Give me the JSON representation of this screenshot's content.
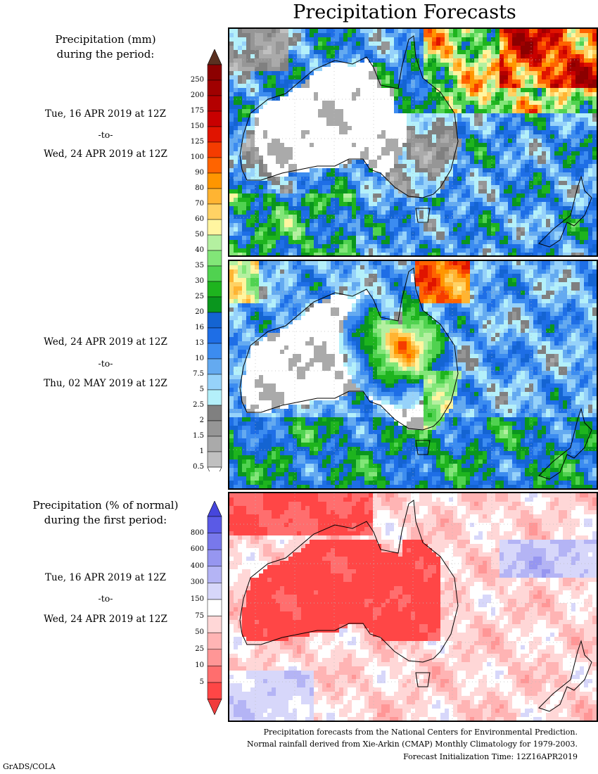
{
  "title": "Precipitation Forecasts",
  "panel1": {
    "label_line1": "Precipitation (mm)",
    "label_line2": "during the period:",
    "start": "Tue, 16 APR 2019 at 12Z",
    "to": "-to-",
    "end": "Wed, 24 APR 2019 at 12Z"
  },
  "panel2": {
    "start": "Wed, 24 APR 2019 at 12Z",
    "to": "-to-",
    "end": "Thu, 02 MAY 2019 at 12Z"
  },
  "panel3": {
    "label_line1": "Precipitation (% of normal)",
    "label_line2": "during the first period:",
    "start": "Tue, 16 APR 2019 at 12Z",
    "to": "-to-",
    "end": "Wed, 24 APR 2019 at 12Z"
  },
  "mm_scale": {
    "ticks": [
      "250",
      "200",
      "175",
      "150",
      "125",
      "100",
      "90",
      "80",
      "70",
      "60",
      "50",
      "40",
      "35",
      "30",
      "25",
      "20",
      "16",
      "13",
      "10",
      "7.5",
      "5",
      "2.5",
      "2",
      "1.5",
      "1",
      "0.5"
    ],
    "colors": [
      "#8c0000",
      "#a00000",
      "#b40000",
      "#c80000",
      "#e01400",
      "#f53c00",
      "#ff6400",
      "#ff9600",
      "#ffb432",
      "#ffd264",
      "#fff5a0",
      "#b4f0a0",
      "#82e678",
      "#50d250",
      "#1eb41e",
      "#0a961e",
      "#1464d2",
      "#1e6ee6",
      "#3c8cf0",
      "#64aaf0",
      "#96d2fa",
      "#b4f0fa",
      "#808080",
      "#969696",
      "#aaaaaa",
      "#c0c0c0"
    ],
    "top_cap": "#5a3020",
    "bottom_cap": "#ffffff"
  },
  "pct_scale": {
    "ticks": [
      "800",
      "600",
      "400",
      "300",
      "150",
      "75",
      "50",
      "25",
      "10",
      "5"
    ],
    "colors": [
      "#5a5ae6",
      "#7878eb",
      "#9696f0",
      "#b4b4f5",
      "#d7d7fa",
      "#ffffff",
      "#ffd7d7",
      "#ffb4b4",
      "#ff9696",
      "#ff6e6e",
      "#ff4646"
    ],
    "top_cap": "#4646dc",
    "bottom_cap": "#f03c3c"
  },
  "footer": {
    "line1": "Precipitation forecasts from the National Centers for Environmental Prediction.",
    "line2": "Normal rainfall derived from Xie-Arkin (CMAP) Monthly Climatology for 1979-2003.",
    "line3": "Forecast Initialization Time: 12Z16APR2019"
  },
  "credit": "GrADS/COLA",
  "chart_data": [
    {
      "type": "heatmap",
      "title": "Precipitation (mm)",
      "period": "16 APR 2019 12Z - 24 APR 2019 12Z",
      "region": "Australia / New Zealand",
      "color_levels": [
        0.5,
        1,
        1.5,
        2,
        2.5,
        5,
        7.5,
        10,
        13,
        16,
        20,
        25,
        30,
        35,
        40,
        50,
        60,
        70,
        80,
        90,
        100,
        125,
        150,
        175,
        200,
        250
      ]
    },
    {
      "type": "heatmap",
      "title": "Precipitation (mm)",
      "period": "24 APR 2019 12Z - 02 MAY 2019 12Z",
      "region": "Australia / New Zealand",
      "color_levels": [
        0.5,
        1,
        1.5,
        2,
        2.5,
        5,
        7.5,
        10,
        13,
        16,
        20,
        25,
        30,
        35,
        40,
        50,
        60,
        70,
        80,
        90,
        100,
        125,
        150,
        175,
        200,
        250
      ]
    },
    {
      "type": "heatmap",
      "title": "Precipitation (% of normal)",
      "period": "16 APR 2019 12Z - 24 APR 2019 12Z",
      "region": "Australia / New Zealand",
      "color_levels": [
        5,
        10,
        25,
        50,
        75,
        150,
        300,
        400,
        600,
        800
      ]
    }
  ]
}
